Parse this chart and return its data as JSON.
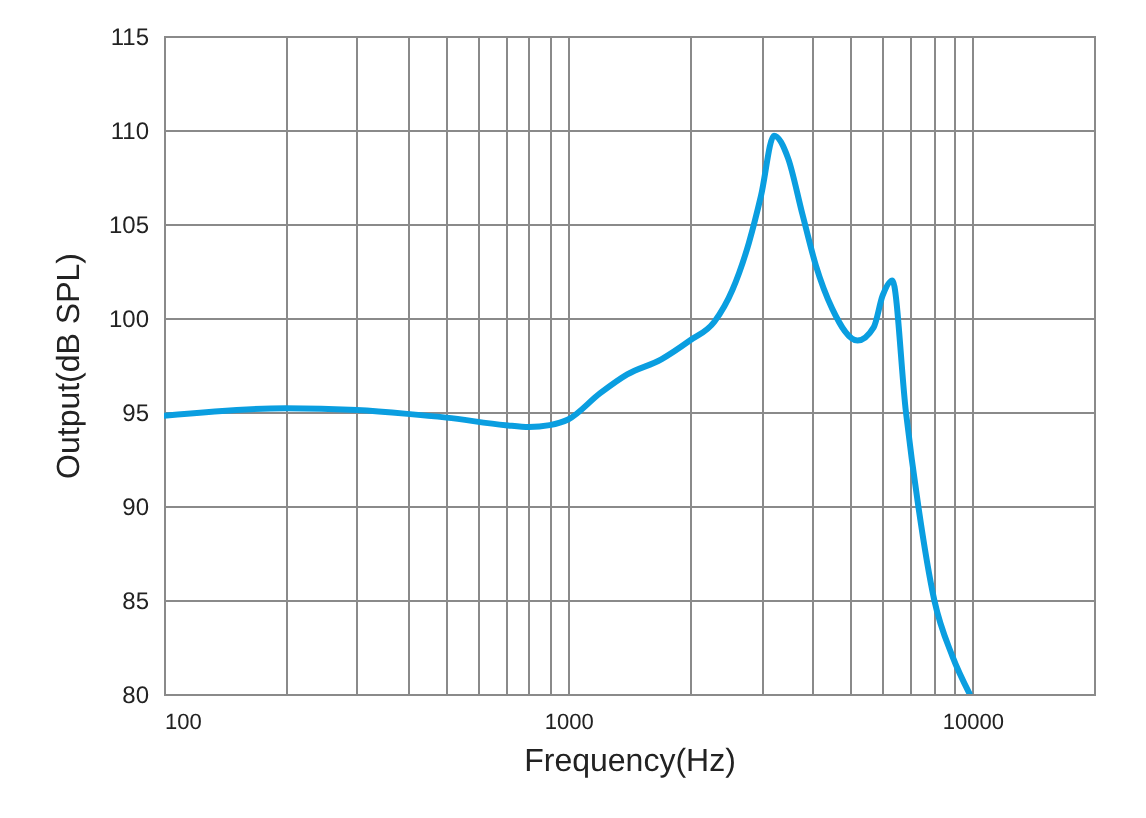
{
  "chart_data": {
    "type": "line",
    "xlabel": "Frequency(Hz)",
    "ylabel": "Output(dB SPL)",
    "log": "x",
    "grid": true,
    "marker": "none",
    "line_style": "solid",
    "xlim": [
      100,
      20000
    ],
    "ylim": [
      80,
      115
    ],
    "xticks": [
      100,
      {
        "value": 200,
        "label": null
      },
      {
        "value": 300,
        "label": null
      },
      {
        "value": 400,
        "label": null
      },
      {
        "value": 500,
        "label": null
      },
      {
        "value": 600,
        "label": null
      },
      {
        "value": 700,
        "label": null
      },
      {
        "value": 800,
        "label": null
      },
      {
        "value": 900,
        "label": null
      },
      1000,
      {
        "value": 2000,
        "label": null
      },
      {
        "value": 3000,
        "label": null
      },
      {
        "value": 4000,
        "label": null
      },
      {
        "value": 5000,
        "label": null
      },
      {
        "value": 6000,
        "label": null
      },
      {
        "value": 7000,
        "label": null
      },
      {
        "value": 8000,
        "label": null
      },
      {
        "value": 9000,
        "label": null
      },
      10000
    ],
    "yticks": [
      80,
      85,
      90,
      95,
      100,
      105,
      110,
      115
    ],
    "x": [
      100,
      200,
      300,
      400,
      500,
      700,
      800,
      900,
      1000,
      1200,
      1400,
      1700,
      2000,
      2300,
      2550,
      2800,
      3000,
      3230,
      3500,
      3800,
      4100,
      4500,
      5200,
      5700,
      6000,
      6340,
      6850,
      7350,
      8050,
      8930,
      9850
    ],
    "series": [
      {
        "color": "#0a9ee0",
        "values": [
          94.8,
          95.2,
          95.1,
          94.9,
          94.7,
          94.3,
          94.2,
          94.3,
          94.6,
          96.0,
          97.0,
          97.8,
          98.8,
          99.8,
          101.5,
          104.0,
          106.5,
          109.7,
          108.5,
          105.5,
          102.8,
          100.5,
          98.8,
          99.5,
          101.2,
          102.0,
          95,
          90,
          85,
          82,
          80
        ]
      }
    ]
  }
}
